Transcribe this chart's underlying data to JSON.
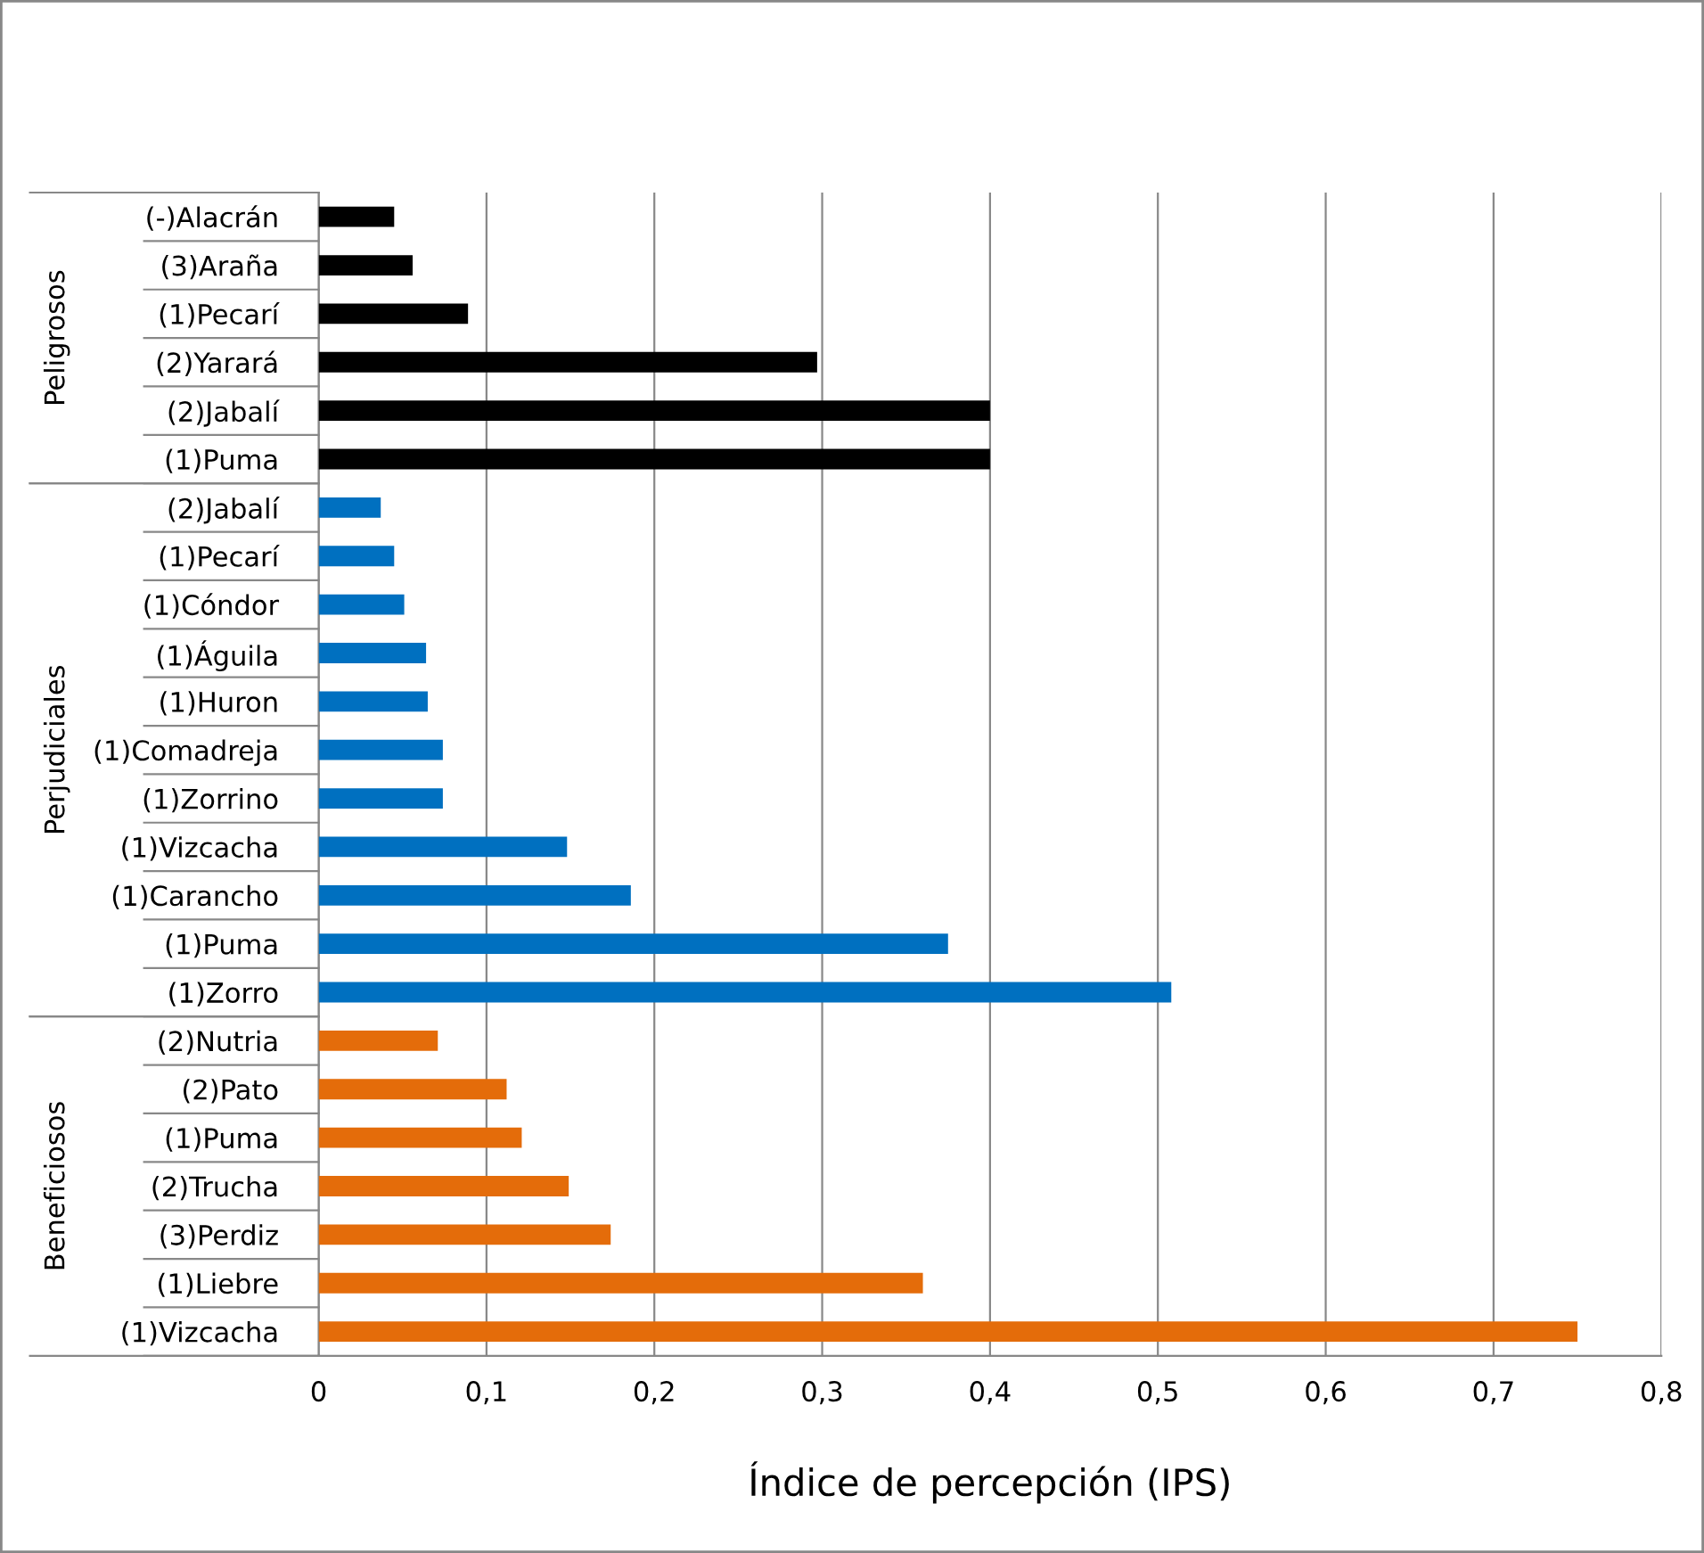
{
  "chart_data": {
    "type": "bar",
    "orientation": "horizontal",
    "xlabel": "Índice de percepción (IPS)",
    "categories": [
      "(-)Alacrán",
      "(3)Araña",
      "(1)Pecarí",
      "(2)Yarará",
      "(2)Jabalí",
      "(1)Puma",
      "(2)Jabalí",
      "(1)Pecarí",
      "(1)Cóndor",
      "(1)Águila",
      "(1)Huron",
      "(1)Comadreja",
      "(1)Zorrino",
      "(1)Vizcacha",
      "(1)Carancho",
      "(1)Puma",
      "(1)Zorro",
      "(2)Nutria",
      "(2)Pato",
      "(1)Puma",
      "(2)Trucha",
      "(3)Perdiz",
      "(1)Liebre",
      "(1)Vizcacha"
    ],
    "series": [
      {
        "color": "#000000",
        "values": [
          0.045,
          0.056,
          0.089,
          0.297,
          0.4,
          0.4,
          null,
          null,
          null,
          null,
          null,
          null,
          null,
          null,
          null,
          null,
          null,
          null,
          null,
          null,
          null,
          null,
          null,
          null
        ]
      },
      {
        "color": "#0070c0",
        "values": [
          null,
          null,
          null,
          null,
          null,
          null,
          0.037,
          0.045,
          0.051,
          0.064,
          0.065,
          0.074,
          0.074,
          0.148,
          0.186,
          0.375,
          0.508,
          null,
          null,
          null,
          null,
          null,
          null,
          null
        ]
      },
      {
        "color": "#e46c0a",
        "values": [
          null,
          null,
          null,
          null,
          null,
          null,
          null,
          null,
          null,
          null,
          null,
          null,
          null,
          null,
          null,
          null,
          null,
          0.071,
          0.112,
          0.121,
          0.149,
          0.174,
          0.36,
          0.75
        ]
      }
    ],
    "xlim": [
      0,
      0.8
    ],
    "xticks": [
      0,
      {
        "value": 0.1,
        "label": "0,1"
      },
      {
        "value": 0.2,
        "label": "0,2"
      },
      {
        "value": 0.3,
        "label": "0,3"
      },
      {
        "value": 0.4,
        "label": "0,4"
      },
      {
        "value": 0.5,
        "label": "0,5"
      },
      {
        "value": 0.6,
        "label": "0,6"
      },
      {
        "value": 0.7,
        "label": "0,7"
      },
      {
        "value": 0.8,
        "label": "0,8"
      }
    ],
    "annotations": [
      "Peligrosos",
      "Perjudiciales",
      "Beneficiosos"
    ],
    "grid": "x",
    "legend": false
  }
}
